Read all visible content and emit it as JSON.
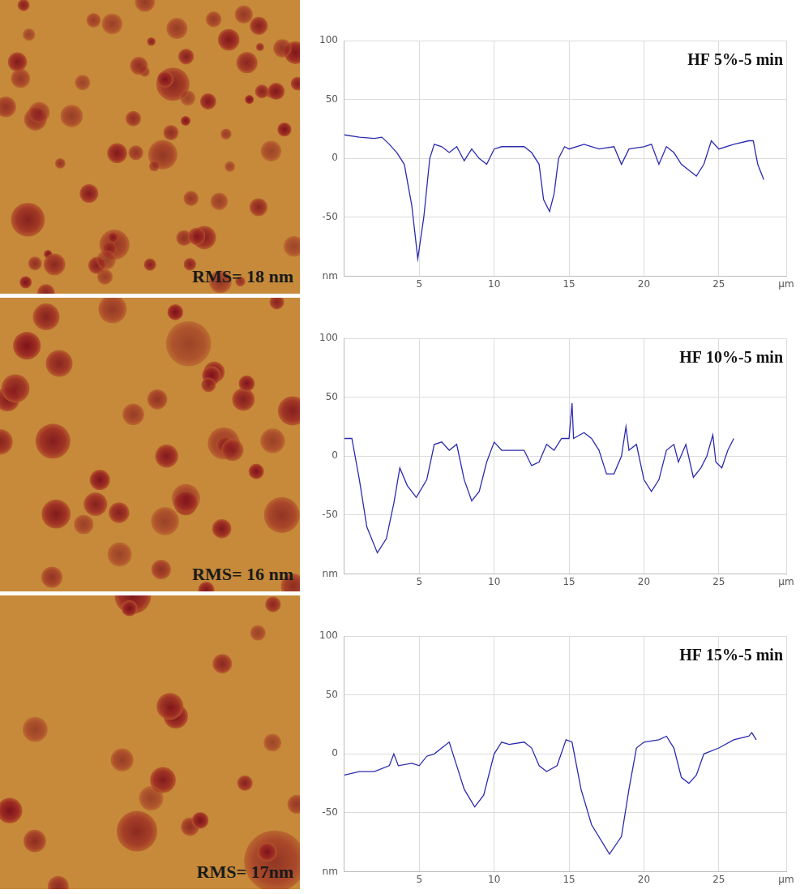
{
  "chart_data": [
    {
      "type": "line",
      "title": "HF 5%-5 min",
      "color": "#2b2bb0",
      "grid": true,
      "xlim": [
        0,
        29.5
      ],
      "xticks": [
        5,
        10,
        15,
        20,
        25,
        {
          "value": 29.5,
          "label": "µm"
        }
      ],
      "ylim": [
        -100,
        100
      ],
      "yticks": [
        {
          "value": -100,
          "label": "nm"
        },
        -50,
        0,
        50,
        100
      ],
      "x": [
        0,
        1,
        2,
        2.5,
        3,
        3.5,
        4,
        4.5,
        4.9,
        5.3,
        5.7,
        6,
        6.5,
        7,
        7.5,
        8,
        8.5,
        9,
        9.5,
        10,
        10.5,
        11,
        12,
        12.5,
        13,
        13.3,
        13.7,
        14,
        14.3,
        14.7,
        15,
        16,
        17,
        18,
        18.5,
        19,
        20,
        20.5,
        21,
        21.5,
        22,
        22.5,
        23,
        23.5,
        24,
        24.5,
        25,
        26,
        27,
        27.3,
        27.6,
        28
      ],
      "values": [
        20,
        18,
        17,
        18,
        12,
        5,
        -5,
        -40,
        -85,
        -50,
        0,
        12,
        10,
        5,
        10,
        -2,
        8,
        0,
        -5,
        8,
        10,
        10,
        10,
        5,
        -5,
        -35,
        -45,
        -30,
        0,
        10,
        8,
        12,
        8,
        10,
        -5,
        8,
        10,
        12,
        -5,
        10,
        5,
        -5,
        -10,
        -15,
        -5,
        15,
        8,
        12,
        15,
        15,
        -5,
        -18
      ]
    },
    {
      "type": "line",
      "title": "HF 10%-5 min",
      "color": "#2b2bb0",
      "grid": true,
      "xlim": [
        0,
        29.5
      ],
      "xticks": [
        5,
        10,
        15,
        20,
        25,
        {
          "value": 29.5,
          "label": "µm"
        }
      ],
      "ylim": [
        -100,
        100
      ],
      "yticks": [
        {
          "value": -100,
          "label": "nm"
        },
        -50,
        0,
        50,
        100
      ],
      "x": [
        0,
        0.5,
        1,
        1.5,
        2.2,
        2.8,
        3.3,
        3.7,
        4.2,
        4.8,
        5.5,
        6,
        6.5,
        7,
        7.5,
        8,
        8.5,
        9,
        9.5,
        10,
        10.5,
        11,
        12,
        12.5,
        13,
        13.5,
        14,
        14.5,
        15,
        15.2,
        15.3,
        16,
        16.5,
        17,
        17.5,
        18,
        18.5,
        18.8,
        19,
        19.5,
        20,
        20.5,
        21,
        21.5,
        22,
        22.3,
        22.8,
        23.3,
        23.8,
        24.2,
        24.6,
        24.8,
        25.2,
        25.6,
        26
      ],
      "values": [
        15,
        15,
        -20,
        -60,
        -82,
        -70,
        -40,
        -10,
        -25,
        -35,
        -20,
        10,
        12,
        5,
        10,
        -20,
        -38,
        -30,
        -5,
        12,
        5,
        5,
        5,
        -8,
        -5,
        10,
        5,
        15,
        15,
        45,
        15,
        20,
        15,
        5,
        -15,
        -15,
        0,
        25,
        5,
        10,
        -20,
        -30,
        -20,
        5,
        10,
        -5,
        10,
        -18,
        -10,
        0,
        18,
        -5,
        -10,
        5,
        15
      ]
    },
    {
      "type": "line",
      "title": "HF 15%-5 min",
      "color": "#2b2bb0",
      "grid": true,
      "xlim": [
        0,
        29.5
      ],
      "xticks": [
        5,
        10,
        15,
        20,
        25,
        {
          "value": 29.5,
          "label": "µm"
        }
      ],
      "ylim": [
        -100,
        100
      ],
      "yticks": [
        {
          "value": -100,
          "label": "nm"
        },
        -50,
        0,
        50,
        100
      ],
      "x": [
        0,
        1,
        2,
        3,
        3.3,
        3.6,
        4.5,
        5,
        5.5,
        6,
        6.5,
        7,
        7.5,
        8,
        8.7,
        9.3,
        10,
        10.5,
        11,
        12,
        12.5,
        13,
        13.5,
        14.2,
        14.8,
        15.2,
        15.8,
        16.5,
        17.7,
        18.5,
        19,
        19.5,
        20,
        21,
        21.5,
        22,
        22.5,
        23,
        23.5,
        24,
        25,
        26,
        27,
        27.2,
        27.5
      ],
      "values": [
        -18,
        -15,
        -15,
        -10,
        0,
        -10,
        -8,
        -10,
        -2,
        0,
        5,
        10,
        -10,
        -30,
        -45,
        -35,
        0,
        10,
        8,
        10,
        5,
        -10,
        -15,
        -10,
        12,
        10,
        -30,
        -60,
        -85,
        -70,
        -30,
        5,
        10,
        12,
        15,
        5,
        -20,
        -25,
        -18,
        0,
        5,
        12,
        15,
        18,
        12
      ]
    }
  ],
  "images": [
    {
      "label": "RMS= 18 nm"
    },
    {
      "label": "RMS= 16 nm"
    },
    {
      "label": "RMS= 17nm"
    }
  ]
}
